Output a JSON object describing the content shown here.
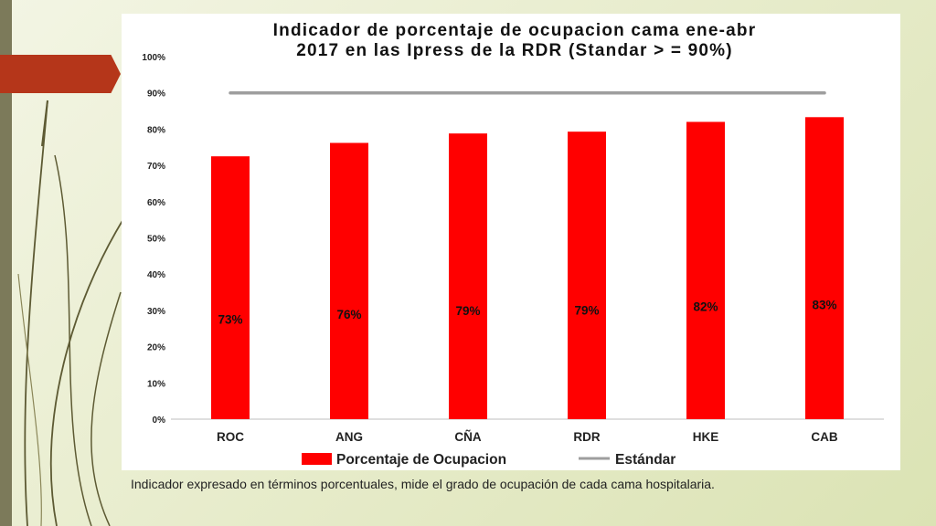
{
  "chart_data": {
    "type": "bar",
    "title_line1": "Indicador de porcentaje de ocupacion cama ene-abr",
    "title_line2": "2017 en las Ipress de la RDR (Standar > = 90%)",
    "categories": [
      "ROC",
      "ANG",
      "CÑA",
      "RDR",
      "HKE",
      "CAB"
    ],
    "series": [
      {
        "name": "Porcentaje de Ocupacion",
        "type": "bar",
        "values": [
          72.5,
          76.2,
          78.8,
          79.3,
          82.0,
          83.3
        ],
        "data_labels": [
          "73%",
          "76%",
          "79%",
          "79%",
          "82%",
          "83%"
        ],
        "color": "#ff0000"
      },
      {
        "name": "Estándar",
        "type": "line",
        "value": 90,
        "color": "#9e9e9e"
      }
    ],
    "yticks": [
      "0%",
      "10%",
      "20%",
      "30%",
      "40%",
      "50%",
      "60%",
      "70%",
      "80%",
      "90%",
      "100%"
    ],
    "ylim": [
      0,
      100
    ],
    "grid": false,
    "legend_position": "bottom"
  },
  "caption": "Indicador expresado en términos porcentuales, mide el grado de ocupación de cada cama hospitalaria.",
  "colors": {
    "accent_red": "#b5361a",
    "left_bar": "#7c7a5a",
    "decor_stroke": "#5d5a33"
  }
}
